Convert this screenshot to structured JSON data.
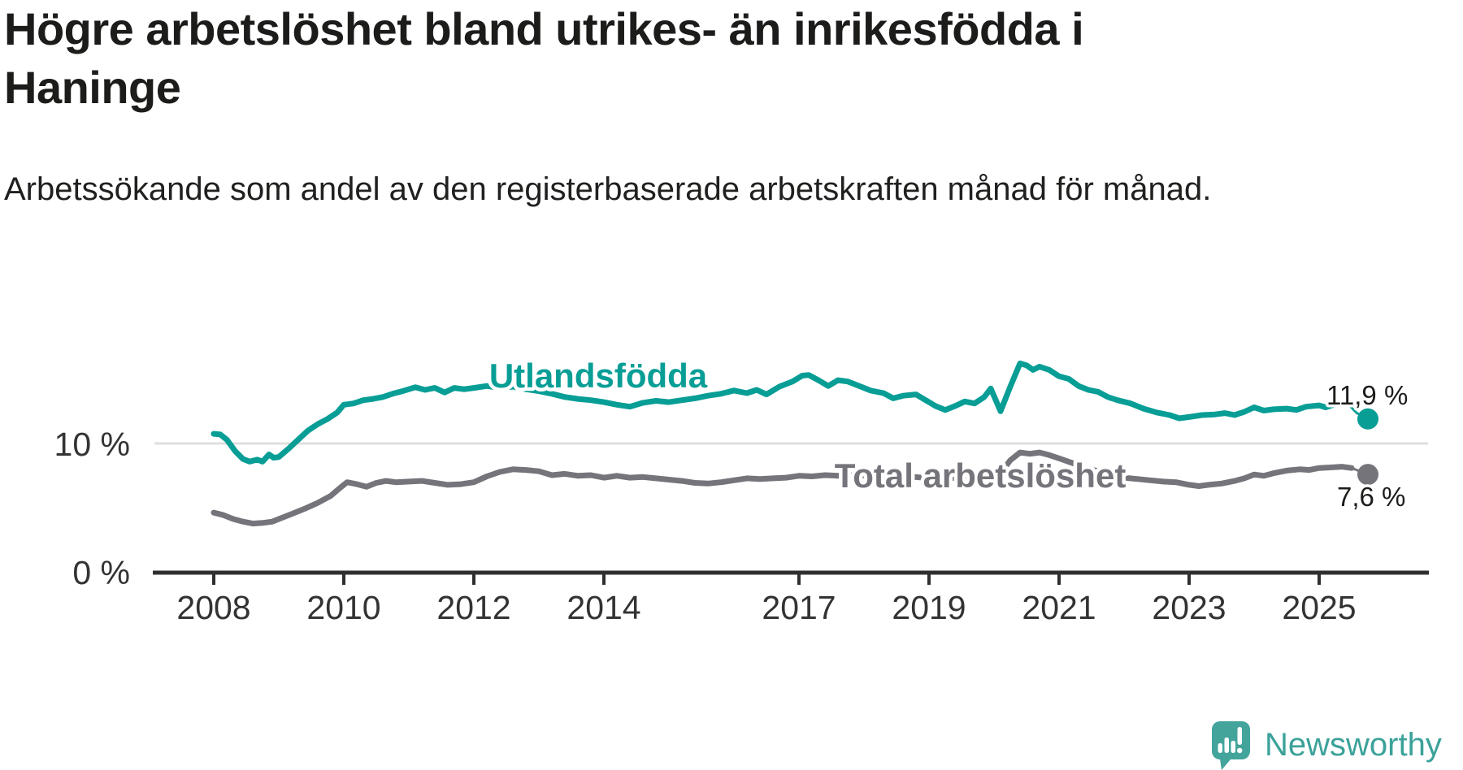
{
  "header": {
    "title": "Högre arbetslöshet bland utrikes- än inrikesfödda i Haninge",
    "subtitle": "Arbetssökande som andel av den registerbaserade arbetskraften månad för månad."
  },
  "chart_data": {
    "type": "line",
    "unit": "%",
    "x_axis": {
      "ticks": [
        {
          "label": "2008",
          "year": 2008
        },
        {
          "label": "2010",
          "year": 2010
        },
        {
          "label": "2012",
          "year": 2012
        },
        {
          "label": "2014",
          "year": 2014
        },
        {
          "label": "2017",
          "year": 2017
        },
        {
          "label": "2019",
          "year": 2019
        },
        {
          "label": "2021",
          "year": 2021
        },
        {
          "label": "2023",
          "year": 2023
        },
        {
          "label": "2025",
          "year": 2025
        }
      ]
    },
    "y_axis": {
      "ticks": [
        {
          "label": "0 %",
          "value": 0
        },
        {
          "label": "10 %",
          "value": 10
        }
      ],
      "range": [
        0,
        18.5
      ],
      "grid": "single-line-at-10"
    },
    "legend_position": "inline-labels",
    "series": [
      {
        "name": "Utlandsfödda",
        "color": "#089e96",
        "label_value": "11,9 %",
        "last_value": 11.9,
        "solid_until": 2025.42,
        "points": [
          [
            2008.0,
            10.75
          ],
          [
            2008.1,
            10.7
          ],
          [
            2008.2,
            10.3
          ],
          [
            2008.33,
            9.4
          ],
          [
            2008.45,
            8.8
          ],
          [
            2008.55,
            8.6
          ],
          [
            2008.67,
            8.75
          ],
          [
            2008.75,
            8.6
          ],
          [
            2008.85,
            9.15
          ],
          [
            2008.92,
            8.9
          ],
          [
            2009.0,
            8.95
          ],
          [
            2009.15,
            9.6
          ],
          [
            2009.3,
            10.3
          ],
          [
            2009.45,
            11.0
          ],
          [
            2009.6,
            11.5
          ],
          [
            2009.75,
            11.9
          ],
          [
            2009.9,
            12.4
          ],
          [
            2010.0,
            13.0
          ],
          [
            2010.15,
            13.1
          ],
          [
            2010.3,
            13.35
          ],
          [
            2010.45,
            13.45
          ],
          [
            2010.6,
            13.6
          ],
          [
            2010.75,
            13.85
          ],
          [
            2010.9,
            14.05
          ],
          [
            2011.1,
            14.35
          ],
          [
            2011.25,
            14.15
          ],
          [
            2011.4,
            14.3
          ],
          [
            2011.55,
            13.95
          ],
          [
            2011.7,
            14.3
          ],
          [
            2011.85,
            14.2
          ],
          [
            2012.0,
            14.3
          ],
          [
            2012.2,
            14.45
          ],
          [
            2012.4,
            14.3
          ],
          [
            2012.6,
            14.4
          ],
          [
            2012.8,
            14.2
          ],
          [
            2013.0,
            14.05
          ],
          [
            2013.2,
            13.85
          ],
          [
            2013.4,
            13.6
          ],
          [
            2013.6,
            13.45
          ],
          [
            2013.8,
            13.35
          ],
          [
            2014.0,
            13.2
          ],
          [
            2014.2,
            13.0
          ],
          [
            2014.4,
            12.85
          ],
          [
            2014.6,
            13.15
          ],
          [
            2014.8,
            13.3
          ],
          [
            2015.0,
            13.2
          ],
          [
            2015.2,
            13.35
          ],
          [
            2015.4,
            13.5
          ],
          [
            2015.6,
            13.7
          ],
          [
            2015.8,
            13.85
          ],
          [
            2016.0,
            14.1
          ],
          [
            2016.2,
            13.9
          ],
          [
            2016.35,
            14.15
          ],
          [
            2016.5,
            13.8
          ],
          [
            2016.7,
            14.4
          ],
          [
            2016.9,
            14.8
          ],
          [
            2017.05,
            15.25
          ],
          [
            2017.15,
            15.3
          ],
          [
            2017.3,
            14.9
          ],
          [
            2017.45,
            14.45
          ],
          [
            2017.6,
            14.9
          ],
          [
            2017.75,
            14.8
          ],
          [
            2017.9,
            14.5
          ],
          [
            2018.1,
            14.1
          ],
          [
            2018.3,
            13.9
          ],
          [
            2018.45,
            13.5
          ],
          [
            2018.6,
            13.7
          ],
          [
            2018.8,
            13.8
          ],
          [
            2019.0,
            13.2
          ],
          [
            2019.1,
            12.9
          ],
          [
            2019.25,
            12.6
          ],
          [
            2019.4,
            12.9
          ],
          [
            2019.55,
            13.25
          ],
          [
            2019.7,
            13.1
          ],
          [
            2019.85,
            13.6
          ],
          [
            2019.95,
            14.25
          ],
          [
            2020.1,
            12.5
          ],
          [
            2020.25,
            14.4
          ],
          [
            2020.4,
            16.2
          ],
          [
            2020.5,
            16.05
          ],
          [
            2020.6,
            15.7
          ],
          [
            2020.7,
            15.95
          ],
          [
            2020.85,
            15.7
          ],
          [
            2021.0,
            15.2
          ],
          [
            2021.15,
            15.0
          ],
          [
            2021.3,
            14.45
          ],
          [
            2021.45,
            14.15
          ],
          [
            2021.6,
            14.0
          ],
          [
            2021.75,
            13.6
          ],
          [
            2021.9,
            13.35
          ],
          [
            2022.1,
            13.1
          ],
          [
            2022.3,
            12.7
          ],
          [
            2022.5,
            12.4
          ],
          [
            2022.7,
            12.2
          ],
          [
            2022.85,
            11.95
          ],
          [
            2023.0,
            12.05
          ],
          [
            2023.2,
            12.2
          ],
          [
            2023.4,
            12.25
          ],
          [
            2023.55,
            12.35
          ],
          [
            2023.7,
            12.2
          ],
          [
            2023.85,
            12.45
          ],
          [
            2024.0,
            12.8
          ],
          [
            2024.15,
            12.55
          ],
          [
            2024.3,
            12.65
          ],
          [
            2024.5,
            12.7
          ],
          [
            2024.65,
            12.6
          ],
          [
            2024.8,
            12.85
          ],
          [
            2025.0,
            12.95
          ],
          [
            2025.1,
            12.8
          ],
          [
            2025.25,
            13.05
          ],
          [
            2025.42,
            13.2
          ],
          [
            2025.58,
            12.35
          ],
          [
            2025.75,
            11.9
          ]
        ]
      },
      {
        "name": "Total arbetslöshet",
        "color": "#76747b",
        "label_value": "7,6 %",
        "last_value": 7.6,
        "solid_until": 2025.5,
        "points": [
          [
            2008.0,
            4.65
          ],
          [
            2008.15,
            4.45
          ],
          [
            2008.3,
            4.15
          ],
          [
            2008.45,
            3.95
          ],
          [
            2008.6,
            3.8
          ],
          [
            2008.75,
            3.85
          ],
          [
            2008.9,
            3.95
          ],
          [
            2009.0,
            4.15
          ],
          [
            2009.2,
            4.55
          ],
          [
            2009.4,
            4.95
          ],
          [
            2009.6,
            5.4
          ],
          [
            2009.8,
            5.95
          ],
          [
            2009.95,
            6.6
          ],
          [
            2010.05,
            7.0
          ],
          [
            2010.2,
            6.85
          ],
          [
            2010.35,
            6.65
          ],
          [
            2010.5,
            6.95
          ],
          [
            2010.65,
            7.1
          ],
          [
            2010.8,
            7.0
          ],
          [
            2011.0,
            7.05
          ],
          [
            2011.2,
            7.1
          ],
          [
            2011.4,
            6.95
          ],
          [
            2011.6,
            6.8
          ],
          [
            2011.8,
            6.85
          ],
          [
            2012.0,
            7.0
          ],
          [
            2012.2,
            7.45
          ],
          [
            2012.4,
            7.8
          ],
          [
            2012.6,
            8.0
          ],
          [
            2012.8,
            7.95
          ],
          [
            2013.0,
            7.85
          ],
          [
            2013.2,
            7.55
          ],
          [
            2013.4,
            7.65
          ],
          [
            2013.6,
            7.5
          ],
          [
            2013.8,
            7.55
          ],
          [
            2014.0,
            7.35
          ],
          [
            2014.2,
            7.5
          ],
          [
            2014.4,
            7.35
          ],
          [
            2014.6,
            7.4
          ],
          [
            2014.8,
            7.3
          ],
          [
            2015.0,
            7.2
          ],
          [
            2015.2,
            7.1
          ],
          [
            2015.4,
            6.95
          ],
          [
            2015.6,
            6.9
          ],
          [
            2015.8,
            7.0
          ],
          [
            2016.0,
            7.15
          ],
          [
            2016.2,
            7.3
          ],
          [
            2016.4,
            7.25
          ],
          [
            2016.6,
            7.3
          ],
          [
            2016.8,
            7.35
          ],
          [
            2017.0,
            7.5
          ],
          [
            2017.2,
            7.45
          ],
          [
            2017.4,
            7.55
          ],
          [
            2017.6,
            7.5
          ],
          [
            2017.8,
            7.55
          ],
          [
            2018.0,
            7.5
          ],
          [
            2018.2,
            7.4
          ],
          [
            2018.4,
            7.5
          ],
          [
            2018.6,
            7.35
          ],
          [
            2018.8,
            7.4
          ],
          [
            2019.0,
            7.3
          ],
          [
            2019.2,
            7.2
          ],
          [
            2019.4,
            7.35
          ],
          [
            2019.6,
            7.25
          ],
          [
            2019.8,
            7.3
          ],
          [
            2019.95,
            7.4
          ],
          [
            2020.1,
            7.7
          ],
          [
            2020.25,
            8.7
          ],
          [
            2020.4,
            9.3
          ],
          [
            2020.55,
            9.2
          ],
          [
            2020.7,
            9.3
          ],
          [
            2020.85,
            9.1
          ],
          [
            2021.0,
            8.85
          ],
          [
            2021.2,
            8.5
          ],
          [
            2021.4,
            8.1
          ],
          [
            2021.6,
            7.85
          ],
          [
            2021.8,
            7.6
          ],
          [
            2022.0,
            7.35
          ],
          [
            2022.2,
            7.25
          ],
          [
            2022.4,
            7.15
          ],
          [
            2022.6,
            7.05
          ],
          [
            2022.8,
            7.0
          ],
          [
            2023.0,
            6.8
          ],
          [
            2023.15,
            6.7
          ],
          [
            2023.3,
            6.8
          ],
          [
            2023.5,
            6.9
          ],
          [
            2023.7,
            7.1
          ],
          [
            2023.85,
            7.3
          ],
          [
            2024.0,
            7.6
          ],
          [
            2024.15,
            7.5
          ],
          [
            2024.3,
            7.7
          ],
          [
            2024.5,
            7.9
          ],
          [
            2024.7,
            8.0
          ],
          [
            2024.85,
            7.95
          ],
          [
            2025.0,
            8.1
          ],
          [
            2025.2,
            8.15
          ],
          [
            2025.35,
            8.2
          ],
          [
            2025.5,
            8.1
          ],
          [
            2025.6,
            7.9
          ],
          [
            2025.75,
            7.6
          ]
        ]
      }
    ],
    "colors": {
      "accent_teal": "#089e96",
      "series_gray": "#76747b",
      "axis": "#2f2f2f",
      "gridline": "#dfdfdf",
      "text_dark": "#1c1c1a",
      "brand_teal": "#43a49c"
    }
  },
  "footer": {
    "brand": "Newsworthy"
  }
}
